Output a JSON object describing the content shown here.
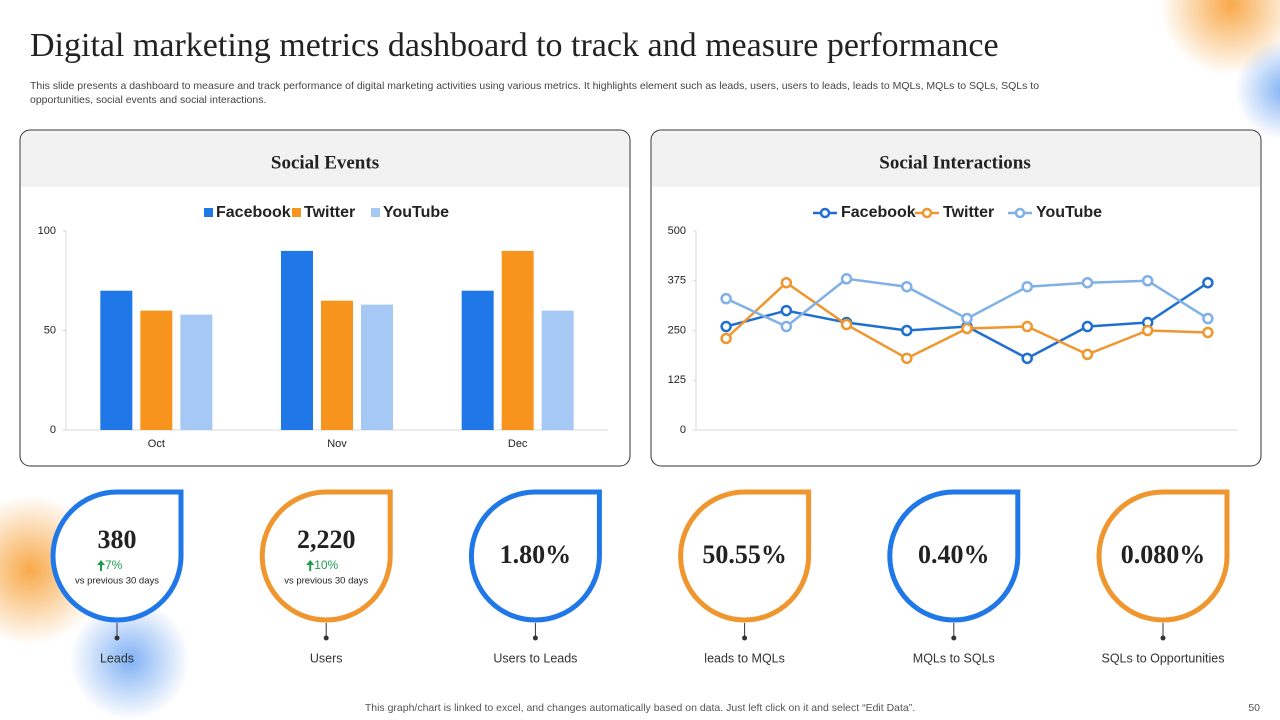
{
  "title": "Digital marketing metrics dashboard to track and measure performance",
  "subtitle_lines": [
    "This slide presents a dashboard to measure and track performance of digital marketing activities using various metrics. It highlights element such as leads, users, users to leads, leads to MQLs, MQLs to SQLs, SQLs to",
    "opportunities, social events and social interactions."
  ],
  "chart_data": [
    {
      "type": "bar",
      "title": "Social Events",
      "categories": [
        "Oct",
        "Nov",
        "Dec"
      ],
      "series": [
        {
          "name": "Facebook",
          "color": "#1f77e8",
          "values": [
            70,
            90,
            70
          ]
        },
        {
          "name": "Twitter",
          "color": "#f7941d",
          "values": [
            60,
            65,
            90
          ]
        },
        {
          "name": "YouTube",
          "color": "#a6c8f5",
          "values": [
            58,
            63,
            60
          ]
        }
      ],
      "ylim": [
        0,
        100
      ],
      "yticks": [
        0,
        50,
        100
      ],
      "legend": "top"
    },
    {
      "type": "line",
      "title": "Social Interactions",
      "categories": [
        null,
        null,
        null,
        null,
        null,
        null,
        null,
        null,
        null
      ],
      "series": [
        {
          "name": "Facebook",
          "color": "#1f6fd0",
          "values": [
            260,
            300,
            270,
            250,
            260,
            180,
            260,
            270,
            370
          ]
        },
        {
          "name": "Twitter",
          "color": "#f0962e",
          "values": [
            230,
            370,
            265,
            180,
            255,
            260,
            190,
            250,
            245
          ]
        },
        {
          "name": "YouTube",
          "color": "#7fb0e6",
          "values": [
            330,
            260,
            380,
            360,
            280,
            360,
            370,
            375,
            280
          ]
        }
      ],
      "ylim": [
        0,
        500
      ],
      "yticks": [
        0,
        125,
        250,
        375,
        500
      ],
      "legend": "top",
      "grid": false
    }
  ],
  "kpis": [
    {
      "value": "380",
      "change": "7%",
      "note": "vs previous 30 days",
      "label": "Leads",
      "color": "#1f77e8"
    },
    {
      "value": "2,220",
      "change": "10%",
      "note": "vs previous 30 days",
      "label": "Users",
      "color": "#f0962e"
    },
    {
      "value": "1.80%",
      "label": "Users to Leads",
      "color": "#1f77e8"
    },
    {
      "value": "50.55%",
      "label": "leads to MQLs",
      "color": "#f0962e"
    },
    {
      "value": "0.40%",
      "label": "MQLs to SQLs",
      "color": "#1f77e8"
    },
    {
      "value": "0.080%",
      "label": "SQLs to Opportunities",
      "color": "#f0962e"
    }
  ],
  "footer": "This graph/chart is linked to excel,  and changes automatically based on data. Just left click on it and select “Edit Data”.",
  "page_number": "50"
}
